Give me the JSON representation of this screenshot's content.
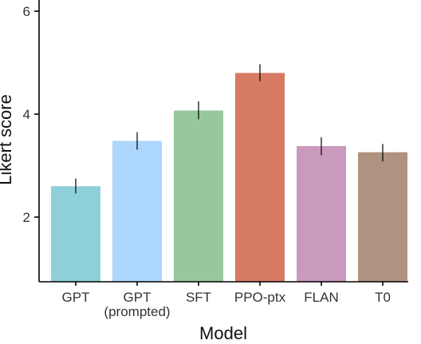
{
  "chart_data": {
    "type": "bar",
    "title": "",
    "xlabel": "Model",
    "ylabel": "Likert score",
    "ylim": [
      0.75,
      6.4
    ],
    "yticks": [
      "2",
      "4",
      "6"
    ],
    "grid": false,
    "categories": [
      {
        "line1": "GPT",
        "line2": ""
      },
      {
        "line1": "GPT",
        "line2": "(prompted)"
      },
      {
        "line1": "SFT",
        "line2": ""
      },
      {
        "line1": "PPO-ptx",
        "line2": ""
      },
      {
        "line1": "FLAN",
        "line2": ""
      },
      {
        "line1": "T0",
        "line2": ""
      }
    ],
    "values": [
      2.6,
      3.48,
      4.07,
      4.8,
      3.38,
      3.26
    ],
    "error_low": [
      2.46,
      3.31,
      3.9,
      4.64,
      3.2,
      3.08
    ],
    "error_high": [
      2.75,
      3.65,
      4.25,
      4.97,
      3.55,
      3.42
    ],
    "colors": [
      "#8fcfda",
      "#acd6fc",
      "#96c89c",
      "#d67a63",
      "#c99abd",
      "#b09280"
    ]
  }
}
